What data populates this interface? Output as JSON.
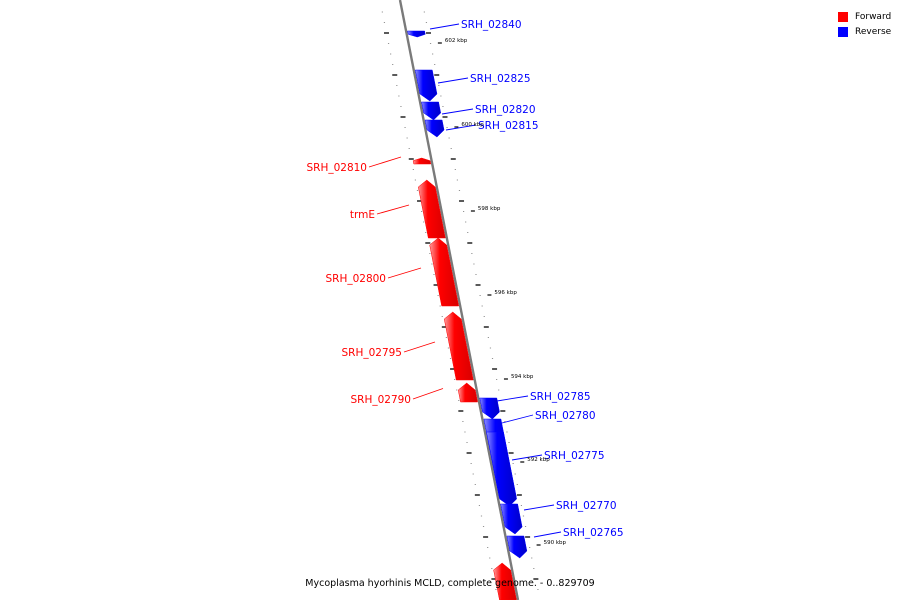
{
  "legend": {
    "forward": {
      "label": "Forward",
      "color": "#ff0000"
    },
    "reverse": {
      "label": "Reverse",
      "color": "#0000ff"
    }
  },
  "caption": "Mycoplasma hyorhinis MCLD, complete genome. - 0..829709",
  "scale_labels": [
    "602 kbp",
    "600 kbp",
    "598 kbp",
    "596 kbp",
    "594 kbp",
    "592 kbp",
    "590 kbp"
  ],
  "genes": [
    {
      "label": "SRH_02840",
      "strand": "reverse"
    },
    {
      "label": "SRH_02825",
      "strand": "reverse"
    },
    {
      "label": "SRH_02820",
      "strand": "reverse"
    },
    {
      "label": "SRH_02815",
      "strand": "reverse"
    },
    {
      "label": "SRH_02810",
      "strand": "forward"
    },
    {
      "label": "trmE",
      "strand": "forward"
    },
    {
      "label": "SRH_02800",
      "strand": "forward"
    },
    {
      "label": "SRH_02795",
      "strand": "forward"
    },
    {
      "label": "SRH_02790",
      "strand": "forward"
    },
    {
      "label": "SRH_02785",
      "strand": "reverse"
    },
    {
      "label": "SRH_02780",
      "strand": "reverse"
    },
    {
      "label": "SRH_02775",
      "strand": "reverse"
    },
    {
      "label": "SRH_02770",
      "strand": "reverse"
    },
    {
      "label": "SRH_02765",
      "strand": "reverse"
    },
    {
      "label": "",
      "strand": "forward"
    }
  ]
}
